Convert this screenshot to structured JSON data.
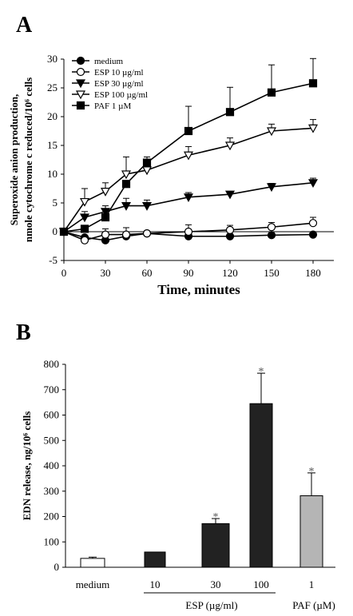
{
  "chart_data": [
    {
      "panel": "A",
      "type": "line",
      "xlabel": "Time, minutes",
      "ylabel_lines": [
        "Superoxide anion production,",
        "nmole cytochrome c reduced/10⁶ cells"
      ],
      "xlim": [
        0,
        195
      ],
      "ylim": [
        -5,
        30
      ],
      "xticks": [
        0,
        30,
        60,
        90,
        120,
        150,
        180
      ],
      "yticks": [
        -5,
        0,
        5,
        10,
        15,
        20,
        25,
        30
      ],
      "x": [
        0,
        15,
        30,
        45,
        60,
        90,
        120,
        150,
        180
      ],
      "series": [
        {
          "name": "medium",
          "marker": "circle-filled",
          "values": [
            0,
            -1.0,
            -1.5,
            -0.8,
            -0.3,
            -0.8,
            -0.8,
            -0.6,
            -0.5
          ],
          "errors": [
            0,
            0,
            0,
            0,
            0,
            0,
            0,
            0,
            0
          ]
        },
        {
          "name": "ESP 10 µg/ml",
          "marker": "circle-open",
          "values": [
            0,
            -1.5,
            -0.5,
            -0.5,
            -0.3,
            0,
            0.3,
            0.8,
            1.5
          ],
          "errors": [
            0,
            0,
            1.0,
            1.2,
            0,
            1.2,
            0.8,
            0.8,
            1.0
          ]
        },
        {
          "name": "ESP 30 µg/ml",
          "marker": "triangle-down-filled",
          "values": [
            0,
            2.5,
            3.5,
            4.5,
            4.5,
            6.0,
            6.5,
            7.8,
            8.5
          ],
          "errors": [
            0,
            1.0,
            1.0,
            1.3,
            1.0,
            0.8,
            0,
            0.6,
            0.8
          ]
        },
        {
          "name": "ESP 100 µg/ml",
          "marker": "triangle-down-open",
          "values": [
            0,
            5.2,
            7.0,
            10.0,
            10.7,
            13.3,
            15.0,
            17.5,
            18.0
          ],
          "errors": [
            0,
            2.3,
            1.5,
            3.0,
            1.2,
            1.5,
            1.3,
            1.2,
            1.5
          ]
        },
        {
          "name": "PAF 1 µM",
          "marker": "square-filled",
          "values": [
            0,
            0.5,
            2.5,
            8.3,
            12.0,
            17.5,
            20.8,
            24.2,
            25.8
          ],
          "errors": [
            0,
            0,
            0,
            0,
            1.0,
            4.3,
            4.3,
            4.8,
            4.3
          ]
        }
      ]
    },
    {
      "panel": "B",
      "type": "bar",
      "ylabel": "EDN release, ng/10⁶ cells",
      "ylim": [
        0,
        800
      ],
      "yticks": [
        0,
        100,
        200,
        300,
        400,
        500,
        600,
        700,
        800
      ],
      "categories": [
        "medium",
        "10",
        "30",
        "100",
        "1"
      ],
      "values": [
        35,
        60,
        172,
        645,
        282
      ],
      "errors": [
        5,
        0,
        20,
        120,
        90
      ],
      "significant": [
        false,
        false,
        true,
        true,
        true
      ],
      "bar_colors": [
        "#ffffff",
        "#222222",
        "#222222",
        "#222222",
        "#b5b5b5"
      ],
      "group_labels": [
        "ESP (µg/ml)",
        "PAF (µM)"
      ],
      "star_text": "*"
    }
  ],
  "panel_labels": [
    "A",
    "B"
  ]
}
